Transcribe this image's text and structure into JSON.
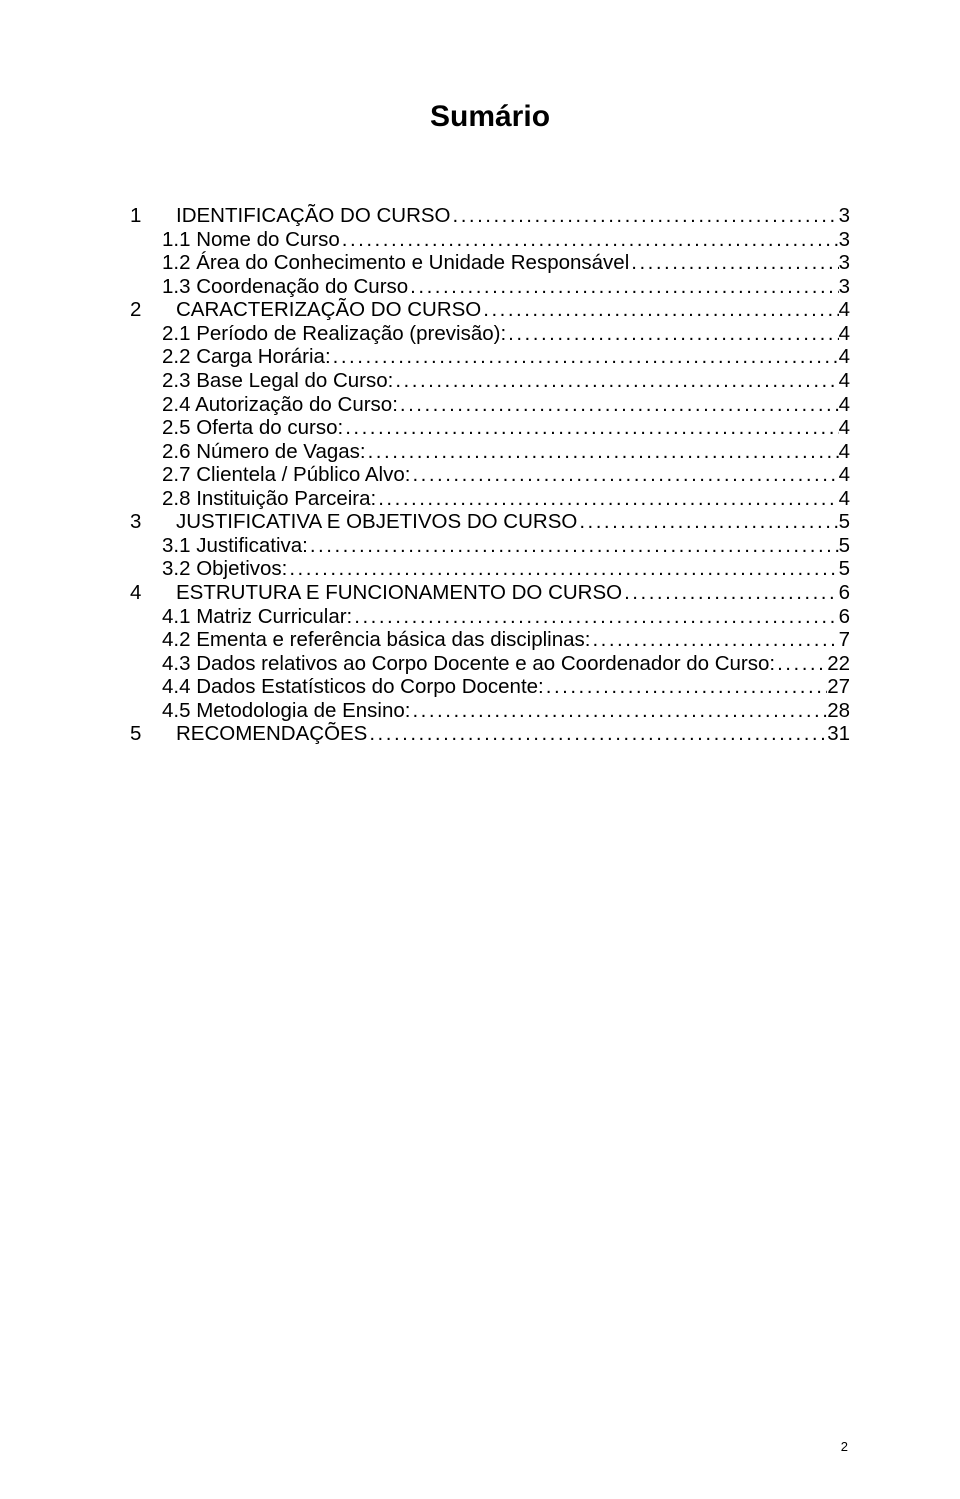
{
  "title": "Sumário",
  "page_number": "2",
  "toc": [
    {
      "level": 1,
      "num": "1",
      "label": "IDENTIFICAÇÃO DO CURSO",
      "page": "3"
    },
    {
      "level": 2,
      "num": "1.1",
      "label": "Nome do Curso",
      "page": "3"
    },
    {
      "level": 2,
      "num": "1.2",
      "label": "Área do Conhecimento e Unidade Responsável",
      "page": "3"
    },
    {
      "level": 2,
      "num": "1.3",
      "label": "Coordenação do Curso",
      "page": "3"
    },
    {
      "level": 1,
      "num": "2",
      "label": "CARACTERIZAÇÃO DO CURSO",
      "page": "4"
    },
    {
      "level": 2,
      "num": "2.1",
      "label": "Período de Realização (previsão):",
      "page": "4"
    },
    {
      "level": 2,
      "num": "2.2",
      "label": "Carga Horária:",
      "page": "4"
    },
    {
      "level": 2,
      "num": "2.3",
      "label": "Base Legal do Curso:",
      "page": "4"
    },
    {
      "level": 2,
      "num": "2.4",
      "label": "Autorização do Curso:",
      "page": "4"
    },
    {
      "level": 2,
      "num": "2.5",
      "label": "Oferta do curso:",
      "page": "4"
    },
    {
      "level": 2,
      "num": "2.6",
      "label": "Número de Vagas:",
      "page": "4"
    },
    {
      "level": 2,
      "num": "2.7",
      "label": "Clientela / Público Alvo:",
      "page": "4"
    },
    {
      "level": 2,
      "num": "2.8",
      "label": "Instituição Parceira:",
      "page": "4"
    },
    {
      "level": 1,
      "num": "3",
      "label": "JUSTIFICATIVA E OBJETIVOS DO CURSO",
      "page": "5"
    },
    {
      "level": 2,
      "num": "3.1",
      "label": "Justificativa:",
      "page": "5"
    },
    {
      "level": 2,
      "num": "3.2",
      "label": "Objetivos:",
      "page": "5"
    },
    {
      "level": 1,
      "num": "4",
      "label": "ESTRUTURA E FUNCIONAMENTO DO CURSO",
      "page": "6"
    },
    {
      "level": 2,
      "num": "4.1",
      "label": "Matriz Curricular:",
      "page": "6"
    },
    {
      "level": 2,
      "num": "4.2",
      "label": "Ementa e referência básica das disciplinas:",
      "page": "7"
    },
    {
      "level": 2,
      "num": "4.3",
      "label": "Dados relativos ao Corpo Docente e ao Coordenador do Curso:",
      "page": "22"
    },
    {
      "level": 2,
      "num": "4.4",
      "label": "Dados Estatísticos do Corpo Docente:",
      "page": "27"
    },
    {
      "level": 2,
      "num": "4.5",
      "label": "Metodologia de Ensino:",
      "page": "28"
    },
    {
      "level": 1,
      "num": "5",
      "label": "RECOMENDAÇÕES",
      "page": "31"
    }
  ],
  "style": {
    "font_family": "Arial",
    "title_fontsize_pt": 22,
    "body_fontsize_pt": 15,
    "text_color": "#000000",
    "background_color": "#ffffff"
  }
}
